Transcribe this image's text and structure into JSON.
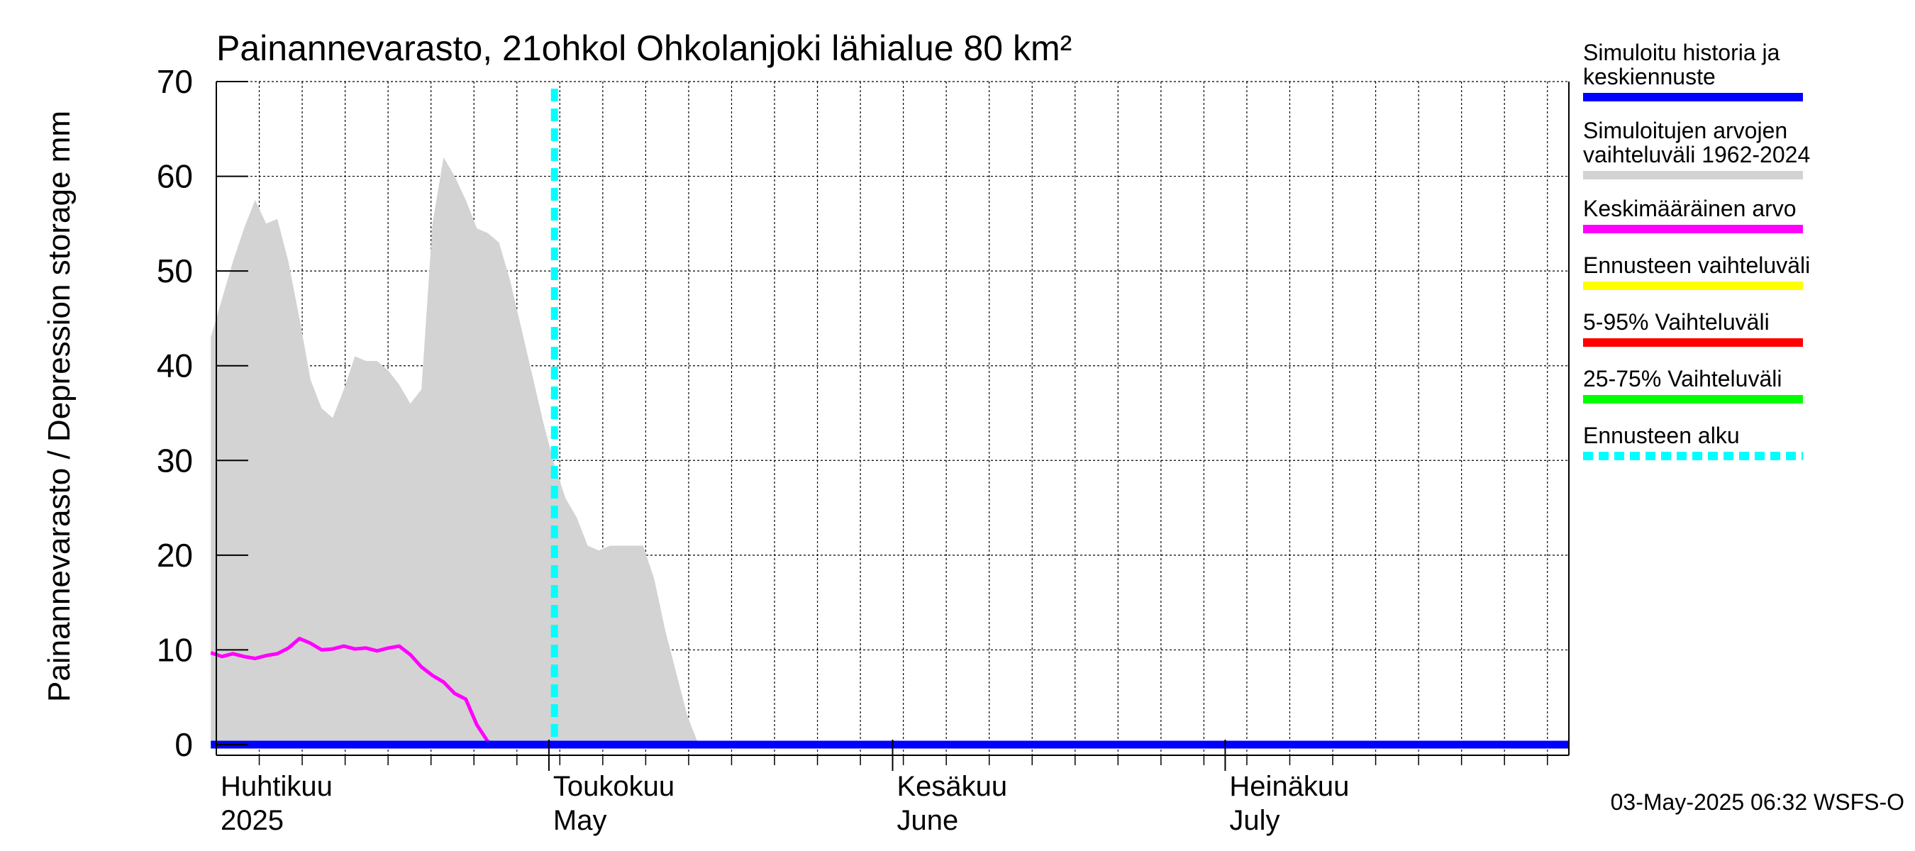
{
  "chart_data": {
    "type": "area",
    "title": "Painannevarasto, 21ohkol Ohkolanjoki lähialue 80 km²",
    "ylabel": "Painannevarasto / Depression storage    mm",
    "ylim": [
      0,
      70
    ],
    "yticks": [
      0,
      10,
      20,
      30,
      40,
      50,
      60,
      70
    ],
    "x_domain_days": [
      0,
      122
    ],
    "month_labels": [
      {
        "day": 0,
        "line1": "Huhtikuu",
        "line2": "2025"
      },
      {
        "day": 30,
        "line1": "Toukokuu",
        "line2": "May"
      },
      {
        "day": 61,
        "line1": "Kesäkuu",
        "line2": "June"
      },
      {
        "day": 91,
        "line1": "Heinäkuu",
        "line2": "July"
      }
    ],
    "forecast_start_day": 30.5,
    "series": [
      {
        "name": "Simuloitujen arvojen vaihteluväli 1962-2024",
        "kind": "band",
        "color": "#d3d3d3",
        "x": [
          -0.5,
          0.5,
          1.5,
          2.5,
          3.5,
          4.5,
          5.5,
          6.5,
          7.5,
          8.5,
          9.5,
          10.5,
          11.5,
          12.5,
          13.5,
          14.5,
          15.5,
          16.5,
          17.5,
          18.5,
          19.5,
          20.5,
          21.5,
          22.5,
          23.5,
          24.5,
          25.5,
          26.5,
          27.5,
          28.5,
          29.5,
          30.5,
          31.5,
          32.5,
          33.5,
          34.5,
          35.5,
          36.5,
          37.5,
          38.5,
          39.5,
          40.5,
          41.5,
          42.5,
          43.5,
          44.5,
          45.5,
          46.5
        ],
        "low": [
          0,
          0,
          0,
          0,
          0,
          0,
          0,
          0,
          0,
          0,
          0,
          0,
          0,
          0,
          0,
          0,
          0,
          0,
          0,
          0,
          0,
          0,
          0,
          0,
          0,
          0,
          0,
          0,
          0,
          0,
          0,
          0,
          0,
          0,
          0,
          0,
          0,
          0,
          0,
          0,
          0,
          0,
          0,
          0,
          0,
          0,
          0,
          0
        ],
        "high": [
          43,
          47,
          51,
          54.5,
          57.5,
          55,
          55.5,
          51,
          45,
          38.5,
          35.5,
          34.5,
          37.5,
          41,
          40.5,
          40.5,
          39.5,
          38,
          36,
          37.5,
          55,
          62,
          60,
          57.5,
          54.5,
          54,
          53,
          49,
          44,
          39,
          34,
          29.5,
          26,
          24,
          21,
          20.5,
          21,
          21,
          21,
          21,
          17.5,
          12,
          7.5,
          3,
          0,
          0,
          0,
          0
        ]
      },
      {
        "name": "Keskimääräinen arvo",
        "kind": "line",
        "color": "#ff00ff",
        "x": [
          -0.5,
          0.5,
          1.5,
          2.5,
          3.5,
          4.5,
          5.5,
          6.5,
          7.5,
          8.5,
          9.5,
          10.5,
          11.5,
          12.5,
          13.5,
          14.5,
          15.5,
          16.5,
          17.5,
          18.5,
          19.5,
          20.5,
          21.5,
          22.5,
          23.5,
          24.5,
          25.5,
          122
        ],
        "y": [
          9.7,
          9.3,
          9.6,
          9.3,
          9.1,
          9.4,
          9.6,
          10.2,
          11.2,
          10.7,
          10.0,
          10.1,
          10.4,
          10.1,
          10.2,
          9.9,
          10.2,
          10.4,
          9.5,
          8.2,
          7.3,
          6.6,
          5.4,
          4.8,
          2.1,
          0.3,
          0,
          0
        ]
      },
      {
        "name": "Simuloitu historia ja keskiennuste",
        "kind": "line",
        "color": "#0000ff",
        "x": [
          -0.5,
          122
        ],
        "y": [
          0,
          0
        ]
      }
    ],
    "legend": [
      {
        "label": "Simuloitu historia ja keskiennuste",
        "color": "#0000ff",
        "style": "solid"
      },
      {
        "label": "Simuloitujen arvojen vaihteluväli 1962-2024",
        "color": "#d3d3d3",
        "style": "solid"
      },
      {
        "label": "Keskimääräinen arvo",
        "color": "#ff00ff",
        "style": "solid"
      },
      {
        "label": "Ennusteen vaihteluväli",
        "color": "#ffff00",
        "style": "solid"
      },
      {
        "label": "5-95% Vaihteluväli",
        "color": "#ff0000",
        "style": "solid"
      },
      {
        "label": "25-75% Vaihteluväli",
        "color": "#00ff00",
        "style": "solid"
      },
      {
        "label": "Ennusteen alku",
        "color": "#00ffff",
        "style": "dashed"
      }
    ],
    "footer": "03-May-2025 06:32 WSFS-O"
  }
}
